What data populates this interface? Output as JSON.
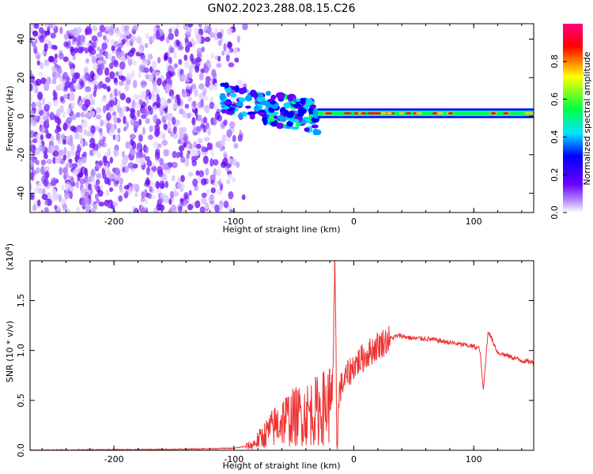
{
  "title": "GN02.2023.288.08.15.C26",
  "chart_data": [
    {
      "type": "heatmap",
      "xlabel": "Height of straight line (km)",
      "ylabel": "Frequency (Hz)",
      "xlim": [
        -270,
        150
      ],
      "ylim": [
        -50,
        48
      ],
      "xticks": [
        -200,
        -100,
        0,
        100
      ],
      "yticks": [
        -40,
        -20,
        0,
        20,
        40
      ],
      "colorbar": {
        "label": "Normalized spectral amplitude",
        "range": [
          0,
          1
        ],
        "ticks": [
          "0.0",
          "0.2",
          "0.4",
          "0.6",
          "0.8"
        ],
        "colormap": [
          "#ffffff",
          "#7000ff",
          "#0000ff",
          "#00e5ff",
          "#00ff00",
          "#ffff00",
          "#ff0000",
          "#ff0080"
        ]
      },
      "features": [
        {
          "label": "noise",
          "x_range": [
            -270,
            -95
          ],
          "y_range": [
            -50,
            48
          ]
        },
        {
          "label": "dispersed signal",
          "x_range": [
            -120,
            -30
          ],
          "y_range": [
            -22,
            18
          ]
        },
        {
          "label": "narrow band",
          "x_range": [
            -30,
            150
          ],
          "y_range": [
            -2,
            4
          ]
        }
      ]
    },
    {
      "type": "line",
      "xlabel": "Height of straight line (km)",
      "ylabel": "SNR (10 * v/v)",
      "yscale_label": "(x10",
      "yscale_exp": "4",
      "yscale_close": ")",
      "xlim": [
        -270,
        150
      ],
      "ylim": [
        0,
        1.9
      ],
      "xticks": [
        -200,
        -100,
        0,
        100
      ],
      "yticks": [
        "0.0",
        "0.5",
        "1.0",
        "1.5"
      ],
      "color": "#ee3333",
      "keypoints": {
        "x": [
          -270,
          -150,
          -100,
          -85,
          -75,
          -60,
          -45,
          -30,
          -22,
          -18,
          -16,
          -14,
          -12,
          -8,
          0,
          10,
          20,
          30,
          38,
          50,
          60,
          80,
          100,
          105,
          108,
          112,
          120,
          130,
          140,
          150
        ],
        "y": [
          0.0,
          0.01,
          0.02,
          0.05,
          0.15,
          0.3,
          0.35,
          0.4,
          0.45,
          0.5,
          1.85,
          0.05,
          0.6,
          0.7,
          0.85,
          0.95,
          1.05,
          1.12,
          1.15,
          1.12,
          1.12,
          1.08,
          1.04,
          1.02,
          0.6,
          1.2,
          0.98,
          0.94,
          0.9,
          0.88
        ]
      }
    }
  ]
}
